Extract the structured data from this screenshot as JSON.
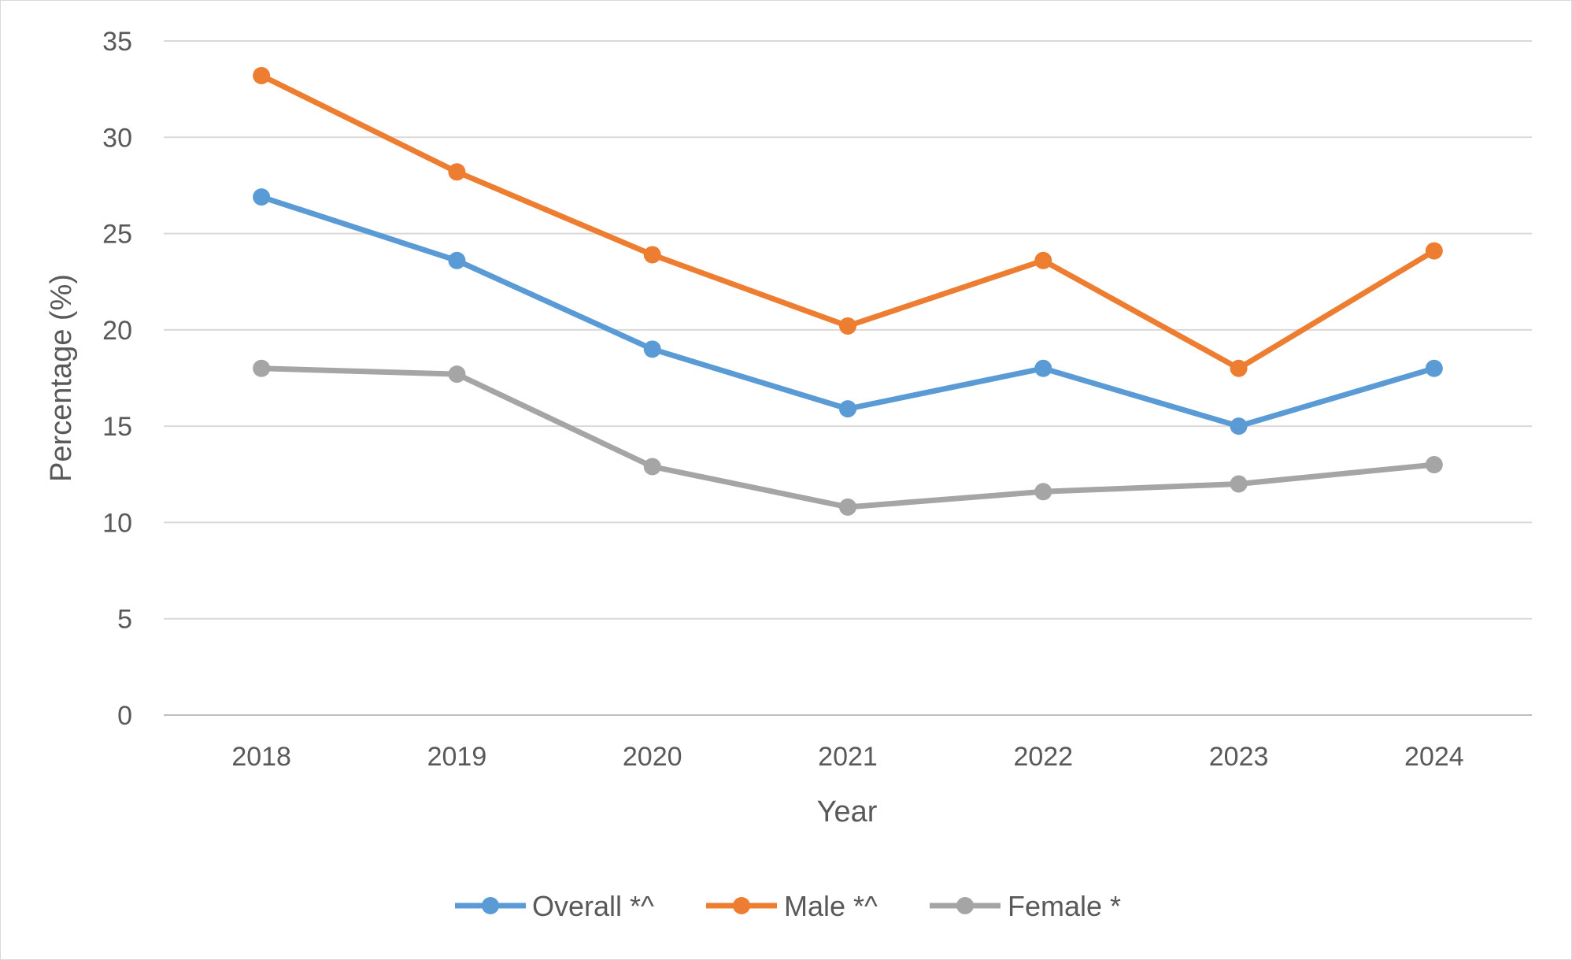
{
  "chart_data": {
    "type": "line",
    "title": "",
    "xlabel": "Year",
    "ylabel": "Percentage (%)",
    "categories": [
      "2018",
      "2019",
      "2020",
      "2021",
      "2022",
      "2023",
      "2024"
    ],
    "ylim": [
      0,
      35
    ],
    "yticks": [
      "0",
      "5",
      "10",
      "15",
      "20",
      "25",
      "30",
      "35"
    ],
    "grid": true,
    "legend_position": "bottom",
    "series": [
      {
        "name": "Overall *^",
        "color": "#5b9bd5",
        "values": [
          26.9,
          23.6,
          19.0,
          15.9,
          18.0,
          15.0,
          18.0
        ]
      },
      {
        "name": "Male *^",
        "color": "#ed7d31",
        "values": [
          33.2,
          28.2,
          23.9,
          20.2,
          23.6,
          18.0,
          24.1
        ]
      },
      {
        "name": "Female *",
        "color": "#a5a5a5",
        "values": [
          18.0,
          17.7,
          12.9,
          10.8,
          11.6,
          12.0,
          13.0
        ]
      }
    ]
  }
}
